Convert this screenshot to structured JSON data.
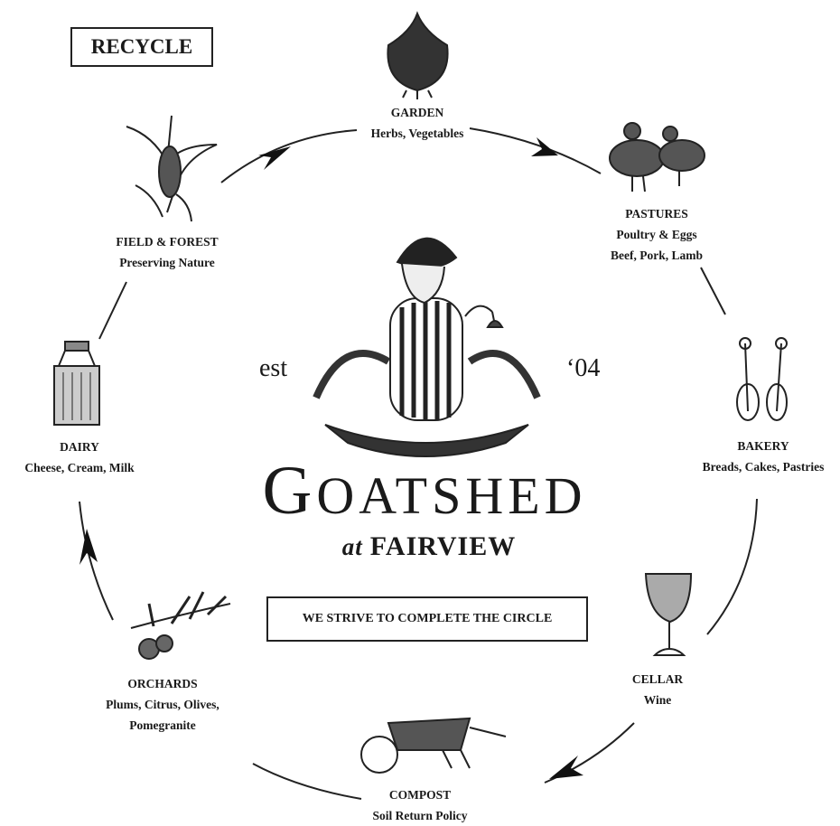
{
  "badge": "RECYCLE",
  "center": {
    "est": "est",
    "year": "‘04",
    "name": "GOATSHED",
    "at": "at",
    "place": "FAIRVIEW",
    "motto": "WE STRIVE TO COMPLETE THE CIRCLE"
  },
  "nodes": [
    {
      "title": "GARDEN",
      "lines": [
        "Herbs, Vegetables"
      ]
    },
    {
      "title": "PASTURES",
      "lines": [
        "Poultry & Eggs",
        "Beef, Pork, Lamb"
      ]
    },
    {
      "title": "BAKERY",
      "lines": [
        "Breads, Cakes, Pastries"
      ]
    },
    {
      "title": "CELLAR",
      "lines": [
        "Wine"
      ]
    },
    {
      "title": "COMPOST",
      "lines": [
        "Soil Return Policy"
      ]
    },
    {
      "title": "ORCHARDS",
      "lines": [
        "Plums, Citrus, Olives,",
        "Pomegranite"
      ]
    },
    {
      "title": "DAIRY",
      "lines": [
        "Cheese, Cream, Milk"
      ]
    },
    {
      "title": "FIELD & FOREST",
      "lines": [
        "Preserving Nature"
      ]
    }
  ]
}
